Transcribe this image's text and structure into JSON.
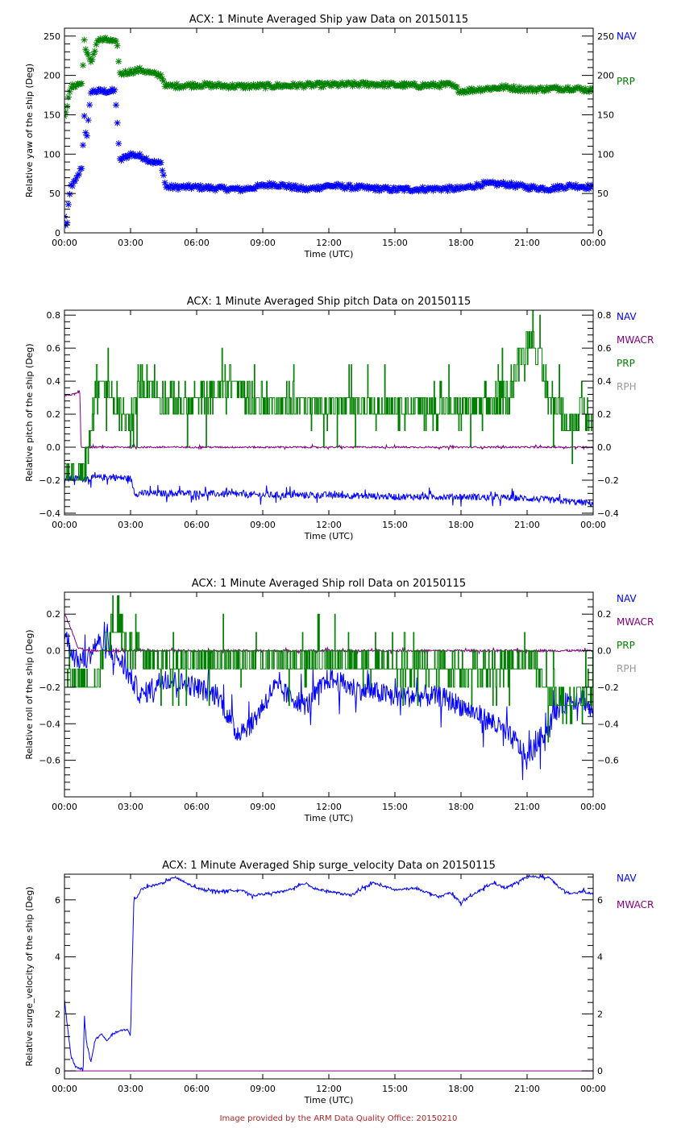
{
  "colors": {
    "NAV": "#0000ff",
    "MWACR": "#800080",
    "PRP": "#008000",
    "RPH": "#999999",
    "axis": "#000000",
    "credit": "#b22222"
  },
  "x_ticks": [
    "00:00",
    "03:00",
    "06:00",
    "09:00",
    "12:00",
    "15:00",
    "18:00",
    "21:00",
    "00:00"
  ],
  "xlabel": "Time (UTC)",
  "credit": "Image provided by the ARM Data Quality Office: 20150210",
  "chart_data": [
    {
      "type": "scatter",
      "title": "ACX: 1 Minute Averaged Ship yaw Data on 20150115",
      "xlabel": "Time (UTC)",
      "ylabel": "Relative yaw of the ship (Deg)",
      "xlim": [
        0,
        24
      ],
      "ylim": [
        0,
        260
      ],
      "yticks": [
        0,
        50,
        100,
        150,
        200,
        250
      ],
      "ytick_labels": [
        "0",
        "50",
        "100",
        "150",
        "200",
        "250"
      ],
      "legend": [
        "NAV",
        "PRP"
      ],
      "legend_position": "right",
      "series": [
        {
          "name": "NAV",
          "x": [
            0,
            0.1,
            0.2,
            0.3,
            0.5,
            0.8,
            0.9,
            1.0,
            1.2,
            1.5,
            2.0,
            2.3,
            2.4,
            2.5,
            3.0,
            3.5,
            4.0,
            4.4,
            4.6,
            6,
            8,
            9.5,
            11,
            12,
            13,
            15,
            17,
            18,
            19,
            20,
            21,
            22,
            23,
            24
          ],
          "y": [
            20,
            5,
            40,
            60,
            65,
            85,
            150,
            115,
            180,
            180,
            180,
            180,
            140,
            92,
            100,
            97,
            90,
            88,
            58,
            58,
            55,
            62,
            55,
            60,
            58,
            55,
            56,
            56,
            62,
            62,
            58,
            56,
            60,
            58
          ]
        },
        {
          "name": "PRP",
          "x": [
            0,
            0.1,
            0.3,
            0.5,
            0.8,
            0.9,
            1.0,
            1.2,
            1.5,
            2.0,
            2.4,
            2.5,
            3.0,
            3.5,
            4.0,
            4.4,
            4.6,
            6,
            8,
            10,
            12,
            14,
            16,
            17.5,
            18,
            19,
            20,
            21,
            22,
            23,
            24
          ],
          "y": [
            150,
            160,
            185,
            188,
            190,
            245,
            230,
            215,
            245,
            245,
            240,
            202,
            205,
            207,
            202,
            200,
            186,
            188,
            186,
            187,
            188,
            189,
            187,
            188,
            180,
            183,
            185,
            182,
            183,
            184,
            181
          ]
        }
      ]
    },
    {
      "type": "line",
      "title": "ACX: 1 Minute Averaged Ship pitch Data on 20150115",
      "xlabel": "Time (UTC)",
      "ylabel": "Relative pitch of the ship (Deg)",
      "xlim": [
        0,
        24
      ],
      "ylim": [
        -0.41,
        0.83
      ],
      "yticks": [
        -0.4,
        -0.2,
        0.0,
        0.2,
        0.4,
        0.6,
        0.8
      ],
      "ytick_labels": [
        "−0.4",
        "−0.2",
        "0.0",
        "0.2",
        "0.4",
        "0.6",
        "0.8"
      ],
      "legend": [
        "NAV",
        "MWACR",
        "PRP",
        "RPH"
      ],
      "legend_position": "right",
      "series": [
        {
          "name": "NAV",
          "x": [
            0,
            1,
            2,
            3.0,
            3.2,
            6,
            9,
            12,
            15,
            18,
            21,
            24
          ],
          "y": [
            -0.19,
            -0.19,
            -0.18,
            -0.19,
            -0.28,
            -0.28,
            -0.29,
            -0.29,
            -0.3,
            -0.3,
            -0.31,
            -0.34
          ],
          "noise": 0.02
        },
        {
          "name": "MWACR",
          "x": [
            0,
            0.7,
            0.75,
            24
          ],
          "y": [
            0.31,
            0.33,
            0.0,
            0.0
          ],
          "noise": 0.005
        },
        {
          "name": "PRP",
          "x": [
            0,
            0.5,
            1.0,
            1.5,
            2.0,
            2.5,
            3.0,
            3.5,
            4.5,
            6,
            7.5,
            8.5,
            10,
            12,
            15,
            18,
            20,
            21.2,
            22,
            23,
            24
          ],
          "y": [
            -0.1,
            -0.2,
            -0.1,
            0.45,
            0.3,
            0.2,
            0.15,
            0.4,
            0.3,
            0.25,
            0.4,
            0.3,
            0.25,
            0.25,
            0.25,
            0.22,
            0.3,
            0.7,
            0.3,
            0.15,
            0.2
          ],
          "noise": 0.1,
          "step": 0.1
        }
      ]
    },
    {
      "type": "line",
      "title": "ACX: 1 Minute Averaged Ship roll Data on 20150115",
      "xlabel": "Time (UTC)",
      "ylabel": "Relative roll of the ship (Deg)",
      "xlim": [
        0,
        24
      ],
      "ylim": [
        -0.8,
        0.32
      ],
      "yticks": [
        -0.6,
        -0.4,
        -0.2,
        0.0,
        0.2
      ],
      "ytick_labels": [
        "−0.6",
        "−0.4",
        "−0.2",
        "0.0",
        "0.2"
      ],
      "legend": [
        "NAV",
        "MWACR",
        "PRP",
        "RPH"
      ],
      "legend_position": "right",
      "series": [
        {
          "name": "NAV",
          "x": [
            0,
            0.5,
            1.0,
            1.5,
            2.5,
            3.0,
            3.5,
            4.5,
            6,
            7,
            7.8,
            8.5,
            9.5,
            11,
            12,
            13,
            15,
            17,
            18,
            19.5,
            20.5,
            21.0,
            21.5,
            22.5,
            23.5,
            24
          ],
          "y": [
            0.1,
            -0.05,
            -0.05,
            0.05,
            -0.05,
            -0.15,
            -0.25,
            -0.15,
            -0.2,
            -0.25,
            -0.45,
            -0.4,
            -0.2,
            -0.3,
            -0.15,
            -0.2,
            -0.25,
            -0.25,
            -0.3,
            -0.4,
            -0.5,
            -0.6,
            -0.5,
            -0.3,
            -0.25,
            -0.35
          ],
          "noise": 0.06
        },
        {
          "name": "MWACR",
          "x": [
            0,
            0.2,
            0.6,
            1.0,
            24
          ],
          "y": [
            0.2,
            0.15,
            0.02,
            0.0,
            0.0
          ],
          "noise": 0.006
        },
        {
          "name": "PRP",
          "x": [
            0,
            0.5,
            1.0,
            1.5,
            2.0,
            2.5,
            3.0,
            4.0,
            5,
            8,
            12,
            16,
            20,
            21.2,
            22,
            23,
            24
          ],
          "y": [
            -0.1,
            -0.15,
            -0.15,
            -0.15,
            0.1,
            0.15,
            0.0,
            -0.05,
            -0.05,
            -0.05,
            -0.05,
            -0.1,
            -0.1,
            0.0,
            -0.25,
            -0.3,
            -0.2
          ],
          "noise": 0.08,
          "step": 0.1
        }
      ]
    },
    {
      "type": "line",
      "title": "ACX: 1 Minute Averaged Ship surge_velocity Data on 20150115",
      "xlabel": "Time (UTC)",
      "ylabel": "Relative surge_velocity of the ship (Deg)",
      "xlim": [
        0,
        24
      ],
      "ylim": [
        -0.28,
        6.9
      ],
      "yticks": [
        0,
        2,
        4,
        6
      ],
      "ytick_labels": [
        "0",
        "2",
        "4",
        "6"
      ],
      "legend": [
        "NAV",
        "MWACR"
      ],
      "legend_position": "right",
      "series": [
        {
          "name": "NAV",
          "x": [
            0,
            0.1,
            0.3,
            0.5,
            0.8,
            0.85,
            0.9,
            1.0,
            1.2,
            1.4,
            1.7,
            1.9,
            2.2,
            2.5,
            2.9,
            3.0,
            3.05,
            3.15,
            3.3,
            3.5,
            4.0,
            4.5,
            5.0,
            5.5,
            6,
            7,
            8,
            8.5,
            9,
            10,
            11,
            11.3,
            12,
            13,
            14,
            15,
            16,
            17,
            17.5,
            18,
            19,
            19.5,
            20,
            21,
            22,
            22.5,
            23,
            23.5,
            24
          ],
          "y": [
            2.5,
            1.8,
            0.5,
            0.15,
            0.05,
            -0.05,
            2.0,
            1.0,
            0.3,
            1.1,
            1.3,
            1.05,
            1.3,
            1.4,
            1.45,
            1.2,
            3.0,
            6.0,
            6.1,
            6.4,
            6.5,
            6.6,
            6.8,
            6.6,
            6.4,
            6.3,
            6.35,
            6.15,
            6.2,
            6.3,
            6.6,
            6.4,
            6.3,
            6.15,
            6.6,
            6.35,
            6.4,
            6.1,
            6.25,
            5.9,
            6.4,
            6.6,
            6.4,
            6.8,
            6.8,
            6.4,
            6.2,
            6.3,
            6.2
          ],
          "noise": 0.04
        },
        {
          "name": "MWACR",
          "x": [
            0,
            24
          ],
          "y": [
            0.0,
            0.0
          ],
          "noise": 0.0
        }
      ]
    }
  ]
}
